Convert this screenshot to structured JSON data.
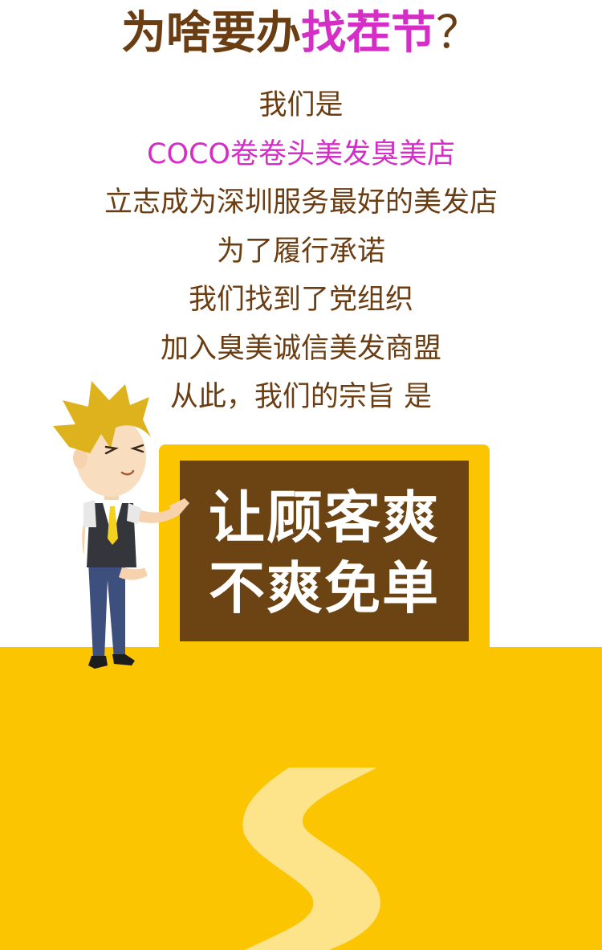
{
  "headline": {
    "part1": "为啥要办",
    "highlight": "找茬节",
    "question_mark": "？"
  },
  "intro_lines": [
    {
      "text": "我们是",
      "accent": false
    },
    {
      "text": "COCO卷卷头美发臭美店",
      "accent": true
    },
    {
      "text": "立志成为深圳服务最好的美发店",
      "accent": false
    },
    {
      "text": "为了履行承诺",
      "accent": false
    },
    {
      "text": "我们找到了党组织",
      "accent": false
    },
    {
      "text": "加入臭美诚信美发商盟",
      "accent": false
    },
    {
      "text": "从此，我们的宗旨 是",
      "accent": false
    }
  ],
  "board": {
    "line1": "让顾客爽",
    "line2": "不爽免单"
  },
  "colors": {
    "brown": "#6b3d12",
    "pink": "#d42ec6",
    "yellow": "#fbc502",
    "board": "#6c4313"
  },
  "icons": {
    "character": "cartoon-host-character-icon",
    "road": "winding-road-icon"
  }
}
